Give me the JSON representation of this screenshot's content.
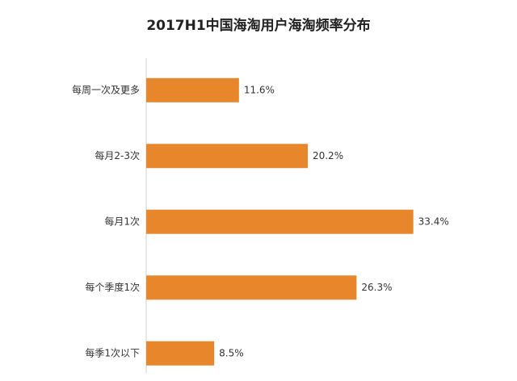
{
  "chart_data": {
    "type": "bar",
    "orientation": "horizontal",
    "title": "2017H1中国海淘用户海淘频率分布",
    "categories": [
      "每周一次及更多",
      "每月2-3次",
      "每月1次",
      "每个季度1次",
      "每季1次以下"
    ],
    "values": [
      11.6,
      20.2,
      33.4,
      26.3,
      8.5
    ],
    "value_labels": [
      "11.6%",
      "20.2%",
      "33.4%",
      "26.3%",
      "8.5%"
    ],
    "color": "#e8862c"
  }
}
